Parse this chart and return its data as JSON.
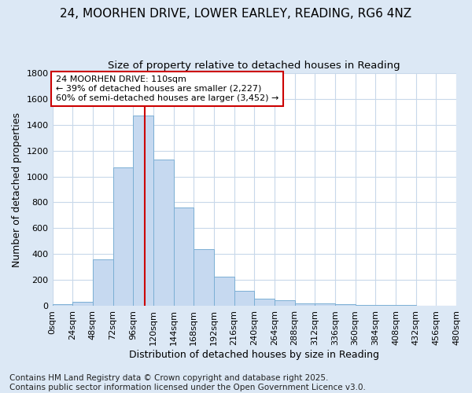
{
  "title": "24, MOORHEN DRIVE, LOWER EARLEY, READING, RG6 4NZ",
  "subtitle": "Size of property relative to detached houses in Reading",
  "xlabel": "Distribution of detached houses by size in Reading",
  "ylabel": "Number of detached properties",
  "bar_values": [
    10,
    30,
    360,
    1070,
    1470,
    1130,
    760,
    440,
    225,
    115,
    57,
    45,
    20,
    15,
    10,
    6,
    4,
    3,
    2,
    2
  ],
  "bin_edges": [
    0,
    24,
    48,
    72,
    96,
    120,
    144,
    168,
    192,
    216,
    240,
    264,
    288,
    312,
    336,
    360,
    384,
    408,
    432,
    456,
    480
  ],
  "bar_color": "#c6d9f0",
  "bar_edge_color": "#7bafd4",
  "bar_edge_width": 0.7,
  "vline_x": 110,
  "vline_color": "#cc0000",
  "annotation_text": "24 MOORHEN DRIVE: 110sqm\n← 39% of detached houses are smaller (2,227)\n60% of semi-detached houses are larger (3,452) →",
  "annotation_box_color": "#ffffff",
  "annotation_border_color": "#cc0000",
  "ylim": [
    0,
    1800
  ],
  "yticks": [
    0,
    200,
    400,
    600,
    800,
    1000,
    1200,
    1400,
    1600,
    1800
  ],
  "tick_labels": [
    "0sqm",
    "24sqm",
    "48sqm",
    "72sqm",
    "96sqm",
    "120sqm",
    "144sqm",
    "168sqm",
    "192sqm",
    "216sqm",
    "240sqm",
    "264sqm",
    "288sqm",
    "312sqm",
    "336sqm",
    "360sqm",
    "384sqm",
    "408sqm",
    "432sqm",
    "456sqm",
    "480sqm"
  ],
  "plot_bg_color": "#ffffff",
  "fig_bg_color": "#dce8f5",
  "footer_text": "Contains HM Land Registry data © Crown copyright and database right 2025.\nContains public sector information licensed under the Open Government Licence v3.0.",
  "title_fontsize": 11,
  "subtitle_fontsize": 9.5,
  "label_fontsize": 9,
  "tick_fontsize": 8,
  "footer_fontsize": 7.5
}
